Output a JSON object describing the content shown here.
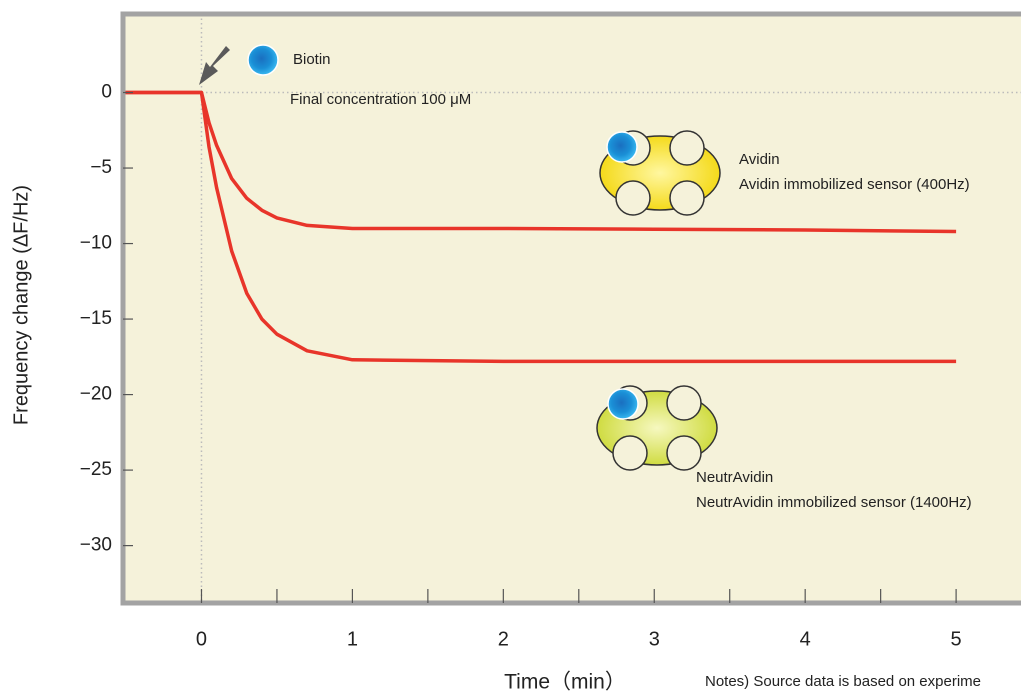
{
  "chart_data": {
    "type": "line",
    "x_label": "Time（min）",
    "y_label": "Frequency change  (ΔF/Hz)",
    "x": [
      -0.52,
      0,
      0.05,
      0.1,
      0.2,
      0.3,
      0.4,
      0.5,
      0.7,
      1,
      2,
      3,
      4,
      5
    ],
    "series": [
      {
        "name": "Avidin",
        "color": "#e8352a",
        "values": [
          0,
          0,
          -2.0,
          -3.5,
          -5.7,
          -7.0,
          -7.8,
          -8.3,
          -8.8,
          -9.0,
          -9.0,
          -9.05,
          -9.1,
          -9.2
        ]
      },
      {
        "name": "NeutrAvidin",
        "color": "#e8352a",
        "values": [
          0,
          0,
          -3.6,
          -6.3,
          -10.5,
          -13.3,
          -15.0,
          -16.0,
          -17.1,
          -17.7,
          -17.8,
          -17.8,
          -17.8,
          -17.8
        ]
      }
    ],
    "annotations": [
      "Biotin",
      "Final concentration 100 μM",
      "Avidin immobilized sensor (400Hz)",
      "NeutrAvidin immobilized sensor (1400Hz)",
      "Notes) Source data is based on experime"
    ],
    "xlim": [
      -0.52,
      5.43
    ],
    "ylim": [
      -33.8,
      5.2
    ],
    "xticks": [
      0,
      1,
      2,
      3,
      4,
      5
    ],
    "xminorticks": [
      0.5,
      1.5,
      2.5,
      3.5,
      4.5
    ],
    "yticks": [
      0,
      {
        "value": -5,
        "label": "−5"
      },
      {
        "value": -10,
        "label": "−10"
      },
      {
        "value": -15,
        "label": "−15"
      },
      {
        "value": -20,
        "label": "−20"
      },
      {
        "value": -25,
        "label": "−25"
      },
      {
        "value": -30,
        "label": "−30"
      }
    ]
  }
}
